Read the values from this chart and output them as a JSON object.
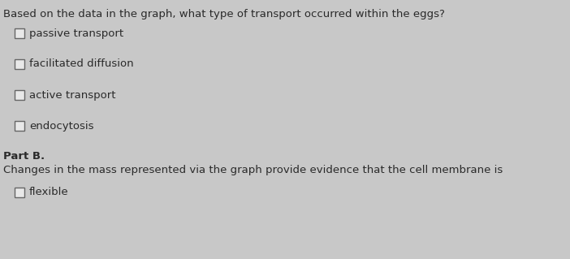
{
  "background_color": "#c8c8c8",
  "title": "Based on the data in the graph, what type of transport occurred within the eggs?",
  "title_fontsize": 9.5,
  "title_color": "#2a2a2a",
  "options_part_a": [
    "passive transport",
    "facilitated diffusion",
    "active transport",
    "endocytosis"
  ],
  "part_b_label": "Part B.",
  "part_b_text": "Changes in the mass represented via the graph provide evidence that the cell membrane is",
  "options_part_b": [
    "flexible"
  ],
  "option_fontsize": 9.5,
  "option_color": "#2a2a2a",
  "part_b_fontsize": 9.5,
  "part_b_color": "#2a2a2a"
}
